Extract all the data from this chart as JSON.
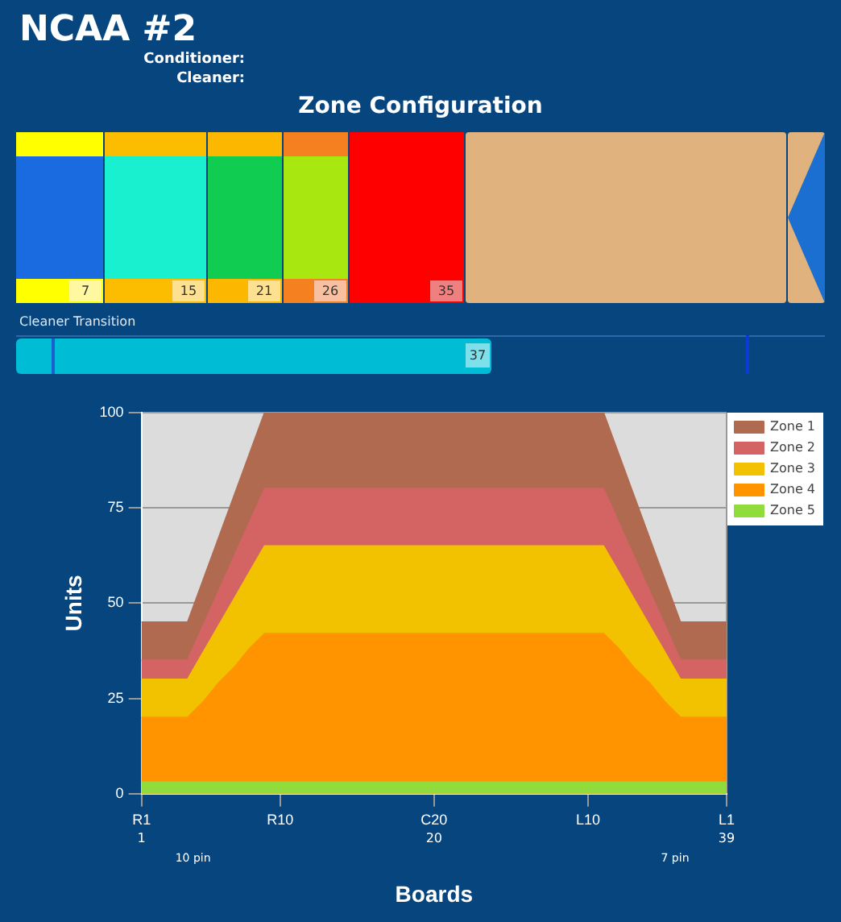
{
  "chart_data": [
    {
      "type": "other",
      "title": "NCAA #2",
      "annotations": [
        "Conditioner:",
        "Cleaner:"
      ]
    },
    {
      "type": "other",
      "title": "Zone Configuration",
      "annotations": [
        "7",
        "15",
        "21",
        "26",
        "35",
        "Cleaner Transition",
        "37"
      ]
    },
    {
      "type": "area",
      "xlabel": "Boards",
      "ylabel": "Units",
      "categories": [
        "R1",
        null,
        null,
        null,
        null,
        null,
        null,
        null,
        null,
        "R10",
        null,
        null,
        null,
        null,
        null,
        null,
        null,
        null,
        null,
        "C20",
        null,
        null,
        null,
        null,
        null,
        null,
        null,
        null,
        null,
        "L10",
        null,
        null,
        null,
        null,
        null,
        null,
        null,
        null,
        "L1"
      ],
      "ylim": [
        0,
        100
      ],
      "yticks": [
        0,
        25,
        50,
        75,
        100
      ],
      "series": [
        {
          "name": "Zone 1",
          "color": "#b06a50",
          "values": [
            45,
            45,
            45,
            45,
            56,
            67,
            78,
            89,
            100,
            100,
            100,
            100,
            100,
            100,
            100,
            100,
            100,
            100,
            100,
            100,
            100,
            100,
            100,
            100,
            100,
            100,
            100,
            100,
            100,
            100,
            100,
            89,
            78,
            67,
            56,
            45,
            45,
            45,
            45
          ]
        },
        {
          "name": "Zone 2",
          "color": "#d46464",
          "values": [
            35,
            35,
            35,
            35,
            44,
            53,
            62,
            71,
            80,
            80,
            80,
            80,
            80,
            80,
            80,
            80,
            80,
            80,
            80,
            80,
            80,
            80,
            80,
            80,
            80,
            80,
            80,
            80,
            80,
            80,
            80,
            71,
            62,
            53,
            44,
            35,
            35,
            35,
            35
          ]
        },
        {
          "name": "Zone 3",
          "color": "#f2c200",
          "values": [
            30,
            30,
            30,
            30,
            37,
            44,
            51,
            58,
            65,
            65,
            65,
            65,
            65,
            65,
            65,
            65,
            65,
            65,
            65,
            65,
            65,
            65,
            65,
            65,
            65,
            65,
            65,
            65,
            65,
            65,
            65,
            58,
            51,
            44,
            37,
            30,
            30,
            30,
            30
          ]
        },
        {
          "name": "Zone 4",
          "color": "#ff9300",
          "values": [
            20,
            20,
            20,
            20,
            24,
            29,
            33,
            38,
            42,
            42,
            42,
            42,
            42,
            42,
            42,
            42,
            42,
            42,
            42,
            42,
            42,
            42,
            42,
            42,
            42,
            42,
            42,
            42,
            42,
            42,
            42,
            38,
            33,
            29,
            24,
            20,
            20,
            20,
            20
          ]
        },
        {
          "name": "Zone 5",
          "color": "#8fdc3c",
          "values": [
            3,
            3,
            3,
            3,
            3,
            3,
            3,
            3,
            3,
            3,
            3,
            3,
            3,
            3,
            3,
            3,
            3,
            3,
            3,
            3,
            3,
            3,
            3,
            3,
            3,
            3,
            3,
            3,
            3,
            3,
            3,
            3,
            3,
            3,
            3,
            3,
            3,
            3,
            3
          ]
        }
      ],
      "annotations": [
        "1",
        "20",
        "39",
        "10 pin",
        "7 pin"
      ],
      "grid": true,
      "legend": "top right"
    }
  ]
}
